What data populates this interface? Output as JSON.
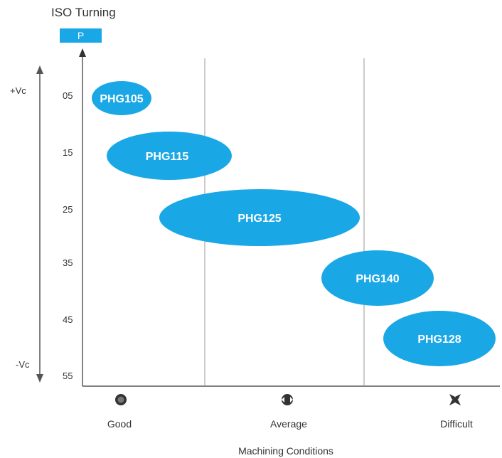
{
  "title": "ISO Turning",
  "badge": "P",
  "chart_data": {
    "type": "bubble-range",
    "ylabel_top": "+Vc",
    "ylabel_bottom": "-Vc",
    "y_ticks": [
      "05",
      "15",
      "25",
      "35",
      "45",
      "55"
    ],
    "x_categories": [
      "Good",
      "Average",
      "Difficult"
    ],
    "xlabel": "Machining Conditions",
    "grades": [
      {
        "name": "PHG105",
        "condition_range": [
          "Good",
          "Good"
        ],
        "iso_range": [
          "05",
          "05"
        ]
      },
      {
        "name": "PHG115",
        "condition_range": [
          "Good",
          "Average"
        ],
        "iso_range": [
          "15",
          "15"
        ]
      },
      {
        "name": "PHG125",
        "condition_range": [
          "Good",
          "Average"
        ],
        "iso_range": [
          "20",
          "30"
        ]
      },
      {
        "name": "PHG140",
        "condition_range": [
          "Average",
          "Difficult"
        ],
        "iso_range": [
          "35",
          "40"
        ]
      },
      {
        "name": "PHG128",
        "condition_range": [
          "Difficult",
          "Difficult"
        ],
        "iso_range": [
          "45",
          "50"
        ]
      }
    ],
    "fill_color": "#1aa7e6"
  }
}
